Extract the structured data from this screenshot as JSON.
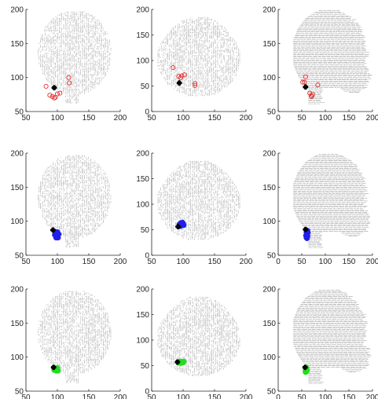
{
  "chart_data": [
    {
      "type": "scatter",
      "row": 1,
      "col": 1,
      "xlim": [
        50,
        200
      ],
      "ylim": [
        50,
        200
      ],
      "xticks": [
        "50",
        "100",
        "150",
        "200"
      ],
      "yticks": [
        "50",
        "100",
        "150",
        "200"
      ],
      "view": "coronal",
      "cloud_x": [
        65,
        190
      ],
      "cloud_y": [
        62,
        197
      ],
      "marker_style": "open-circle",
      "marker_color": "#e03030",
      "markers": [
        [
          82,
          87
        ],
        [
          88,
          74
        ],
        [
          92,
          72
        ],
        [
          95,
          70
        ],
        [
          97,
          71
        ],
        [
          100,
          76
        ],
        [
          104,
          77
        ],
        [
          118,
          100
        ],
        [
          119,
          92
        ]
      ],
      "black_marker": [
        95,
        85
      ]
    },
    {
      "type": "scatter",
      "row": 1,
      "col": 2,
      "xlim": [
        50,
        200
      ],
      "ylim": [
        0,
        200
      ],
      "xticks": [
        "50",
        "100",
        "150",
        "200"
      ],
      "yticks": [
        "0",
        "50",
        "100",
        "150",
        "200"
      ],
      "view": "axial",
      "cloud_x": [
        58,
        192
      ],
      "cloud_y": [
        30,
        188
      ],
      "marker_style": "open-circle",
      "marker_color": "#e03030",
      "markers": [
        [
          84,
          86
        ],
        [
          93,
          69
        ],
        [
          96,
          66
        ],
        [
          98,
          70
        ],
        [
          102,
          72
        ],
        [
          119,
          55
        ],
        [
          119,
          51
        ]
      ],
      "black_marker": [
        94,
        56
      ]
    },
    {
      "type": "scatter",
      "row": 1,
      "col": 3,
      "xlim": [
        0,
        200
      ],
      "ylim": [
        50,
        200
      ],
      "xticks": [
        "0",
        "50",
        "100",
        "150",
        "200"
      ],
      "yticks": [
        "50",
        "100",
        "150",
        "200"
      ],
      "view": "sagittal",
      "cloud_x": [
        30,
        195
      ],
      "cloud_y": [
        60,
        198
      ],
      "marker_style": "open-circle",
      "marker_color": "#e03030",
      "markers": [
        [
          52,
          93
        ],
        [
          56,
          93
        ],
        [
          58,
          101
        ],
        [
          67,
          77
        ],
        [
          70,
          73
        ],
        [
          71,
          72
        ],
        [
          73,
          75
        ],
        [
          84,
          89
        ]
      ],
      "black_marker": [
        58,
        86
      ]
    },
    {
      "type": "scatter",
      "row": 2,
      "col": 1,
      "xlim": [
        50,
        200
      ],
      "ylim": [
        50,
        200
      ],
      "xticks": [
        "50",
        "100",
        "150",
        "200"
      ],
      "yticks": [
        "50",
        "100",
        "150",
        "200"
      ],
      "view": "coronal",
      "cloud_x": [
        65,
        190
      ],
      "cloud_y": [
        62,
        197
      ],
      "marker_style": "filled-circle",
      "marker_color": "#1f1fe6",
      "markers": [
        [
          96,
          80
        ],
        [
          97,
          84
        ],
        [
          98,
          78
        ],
        [
          99,
          82
        ],
        [
          100,
          79
        ],
        [
          101,
          76
        ],
        [
          98,
          76
        ],
        [
          100,
          84
        ],
        [
          102,
          81
        ],
        [
          97,
          81
        ]
      ],
      "black_marker": [
        93,
        87
      ]
    },
    {
      "type": "scatter",
      "row": 2,
      "col": 2,
      "xlim": [
        50,
        200
      ],
      "ylim": [
        0,
        200
      ],
      "xticks": [
        "50",
        "100",
        "150",
        "200"
      ],
      "yticks": [
        "0",
        "50",
        "100",
        "150",
        "200"
      ],
      "view": "axial",
      "cloud_x": [
        58,
        192
      ],
      "cloud_y": [
        30,
        188
      ],
      "marker_style": "filled-circle",
      "marker_color": "#1f1fe6",
      "markers": [
        [
          94,
          60
        ],
        [
          96,
          63
        ],
        [
          98,
          60
        ],
        [
          100,
          62
        ],
        [
          97,
          58
        ],
        [
          95,
          57
        ],
        [
          101,
          59
        ],
        [
          99,
          64
        ]
      ],
      "black_marker": [
        92,
        56
      ]
    },
    {
      "type": "scatter",
      "row": 2,
      "col": 3,
      "xlim": [
        0,
        200
      ],
      "ylim": [
        50,
        200
      ],
      "xticks": [
        "0",
        "50",
        "100",
        "150",
        "200"
      ],
      "yticks": [
        "50",
        "100",
        "150",
        "200"
      ],
      "view": "sagittal",
      "cloud_x": [
        30,
        195
      ],
      "cloud_y": [
        60,
        198
      ],
      "marker_style": "filled-circle",
      "marker_color": "#1f1fe6",
      "markers": [
        [
          60,
          84
        ],
        [
          61,
          81
        ],
        [
          62,
          78
        ],
        [
          60,
          76
        ],
        [
          63,
          83
        ],
        [
          59,
          79
        ],
        [
          62,
          86
        ],
        [
          61,
          75
        ]
      ],
      "black_marker": [
        58,
        88
      ]
    },
    {
      "type": "scatter",
      "row": 3,
      "col": 1,
      "xlim": [
        50,
        200
      ],
      "ylim": [
        50,
        200
      ],
      "xticks": [
        "50",
        "100",
        "150",
        "200"
      ],
      "yticks": [
        "50",
        "100",
        "150",
        "200"
      ],
      "view": "coronal",
      "cloud_x": [
        65,
        190
      ],
      "cloud_y": [
        62,
        197
      ],
      "marker_style": "filled-circle",
      "marker_color": "#22dd22",
      "markers": [
        [
          96,
          82
        ],
        [
          98,
          80
        ],
        [
          100,
          81
        ],
        [
          97,
          84
        ],
        [
          99,
          83
        ],
        [
          101,
          80
        ],
        [
          95,
          81
        ],
        [
          100,
          84
        ]
      ],
      "black_marker": [
        94,
        85
      ]
    },
    {
      "type": "scatter",
      "row": 3,
      "col": 2,
      "xlim": [
        50,
        200
      ],
      "ylim": [
        0,
        200
      ],
      "xticks": [
        "50",
        "100",
        "150",
        "200"
      ],
      "yticks": [
        "0",
        "50",
        "100",
        "150",
        "200"
      ],
      "view": "axial",
      "cloud_x": [
        58,
        192
      ],
      "cloud_y": [
        30,
        188
      ],
      "marker_style": "filled-circle",
      "marker_color": "#22dd22",
      "markers": [
        [
          92,
          56
        ],
        [
          95,
          58
        ],
        [
          98,
          57
        ],
        [
          100,
          56
        ],
        [
          96,
          55
        ],
        [
          94,
          57
        ],
        [
          101,
          58
        ]
      ],
      "black_marker": [
        91,
        57
      ]
    },
    {
      "type": "scatter",
      "row": 3,
      "col": 3,
      "xlim": [
        0,
        200
      ],
      "ylim": [
        50,
        200
      ],
      "xticks": [
        "0",
        "50",
        "100",
        "150",
        "200"
      ],
      "yticks": [
        "50",
        "100",
        "150",
        "200"
      ],
      "view": "sagittal",
      "cloud_x": [
        30,
        195
      ],
      "cloud_y": [
        60,
        198
      ],
      "marker_style": "filled-circle",
      "marker_color": "#22dd22",
      "markers": [
        [
          58,
          80
        ],
        [
          59,
          82
        ],
        [
          60,
          84
        ],
        [
          58,
          78
        ],
        [
          60,
          79
        ],
        [
          59,
          85
        ],
        [
          61,
          81
        ]
      ],
      "black_marker": [
        57,
        85
      ]
    }
  ],
  "colors": {
    "cloud": "#a0a0a0",
    "axis": "#262626",
    "black_marker": "#000000"
  }
}
